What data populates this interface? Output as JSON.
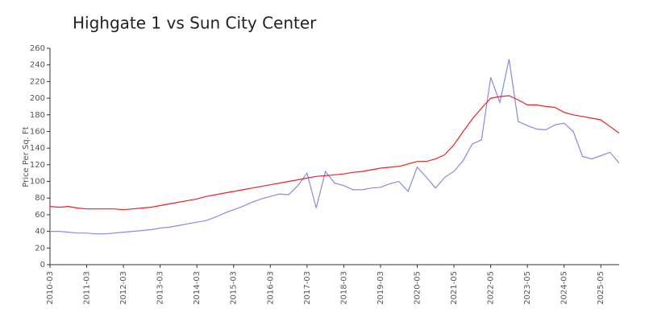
{
  "chart_data": {
    "type": "line",
    "title": "Highgate 1 vs Sun City Center",
    "y_label": "Price Per Sq. Ft",
    "categories": [
      "2010-03",
      null,
      null,
      null,
      "2011-03",
      null,
      null,
      null,
      "2012-03",
      null,
      null,
      null,
      "2013-03",
      null,
      null,
      null,
      "2014-03",
      null,
      null,
      null,
      "2015-03",
      null,
      null,
      null,
      "2016-03",
      null,
      null,
      null,
      "2017-03",
      null,
      null,
      null,
      "2018-03",
      null,
      null,
      null,
      "2019-03",
      null,
      null,
      null,
      "2020-05",
      null,
      null,
      null,
      "2021-05",
      null,
      null,
      null,
      "2022-05",
      null,
      null,
      null,
      "2023-05",
      null,
      null,
      null,
      "2024-05",
      null,
      null,
      null,
      "2025-05",
      null,
      null
    ],
    "series": [
      {
        "color": "#8888ee",
        "values": [
          40,
          40,
          39,
          38,
          38,
          37,
          37,
          38,
          39,
          40,
          41,
          42,
          44,
          45,
          47,
          49,
          51,
          53,
          57,
          62,
          66,
          70,
          75,
          79,
          82,
          85,
          84,
          95,
          110,
          68,
          112,
          98,
          95,
          90,
          90,
          92,
          93,
          97,
          100,
          88,
          117,
          105,
          92,
          105,
          112,
          125,
          145,
          150,
          225,
          195,
          247,
          172,
          167,
          163,
          162,
          168,
          170,
          160,
          130,
          127,
          131,
          135,
          122
        ]
      },
      {
        "color": "#ee2222",
        "values": [
          70,
          69,
          70,
          68,
          67,
          67,
          67,
          67,
          66,
          67,
          68,
          69,
          71,
          73,
          75,
          77,
          79,
          82,
          84,
          86,
          88,
          90,
          92,
          94,
          96,
          98,
          100,
          102,
          104,
          106,
          107,
          108,
          109,
          111,
          112,
          114,
          116,
          117,
          118,
          121,
          124,
          124,
          127,
          132,
          144,
          160,
          175,
          188,
          200,
          202,
          203,
          198,
          192,
          192,
          190,
          189,
          183,
          180,
          178,
          176,
          174,
          166,
          158
        ]
      }
    ],
    "ylim": [
      0,
      260
    ],
    "yticks": [
      0,
      20,
      40,
      60,
      80,
      100,
      120,
      140,
      160,
      180,
      200,
      220,
      240,
      260
    ]
  }
}
